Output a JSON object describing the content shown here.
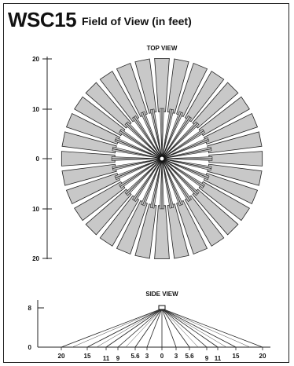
{
  "header": {
    "model": "WSC15",
    "subtitle": "Field of View (in feet)"
  },
  "top_view": {
    "title": "TOP VIEW",
    "y_ticks": [
      "20",
      "10",
      "0",
      "10",
      "20"
    ],
    "beam_count": 32
  },
  "side_view": {
    "title": "SIDE VIEW",
    "y_ticks": [
      "8",
      "0"
    ],
    "x_labels": [
      "20",
      "15",
      "11",
      "9",
      "5.6",
      "3",
      "0",
      "3",
      "5.6",
      "9",
      "11",
      "15",
      "20"
    ]
  },
  "colors": {
    "beam_fill": "#c8c8c8",
    "stroke": "#222222"
  }
}
